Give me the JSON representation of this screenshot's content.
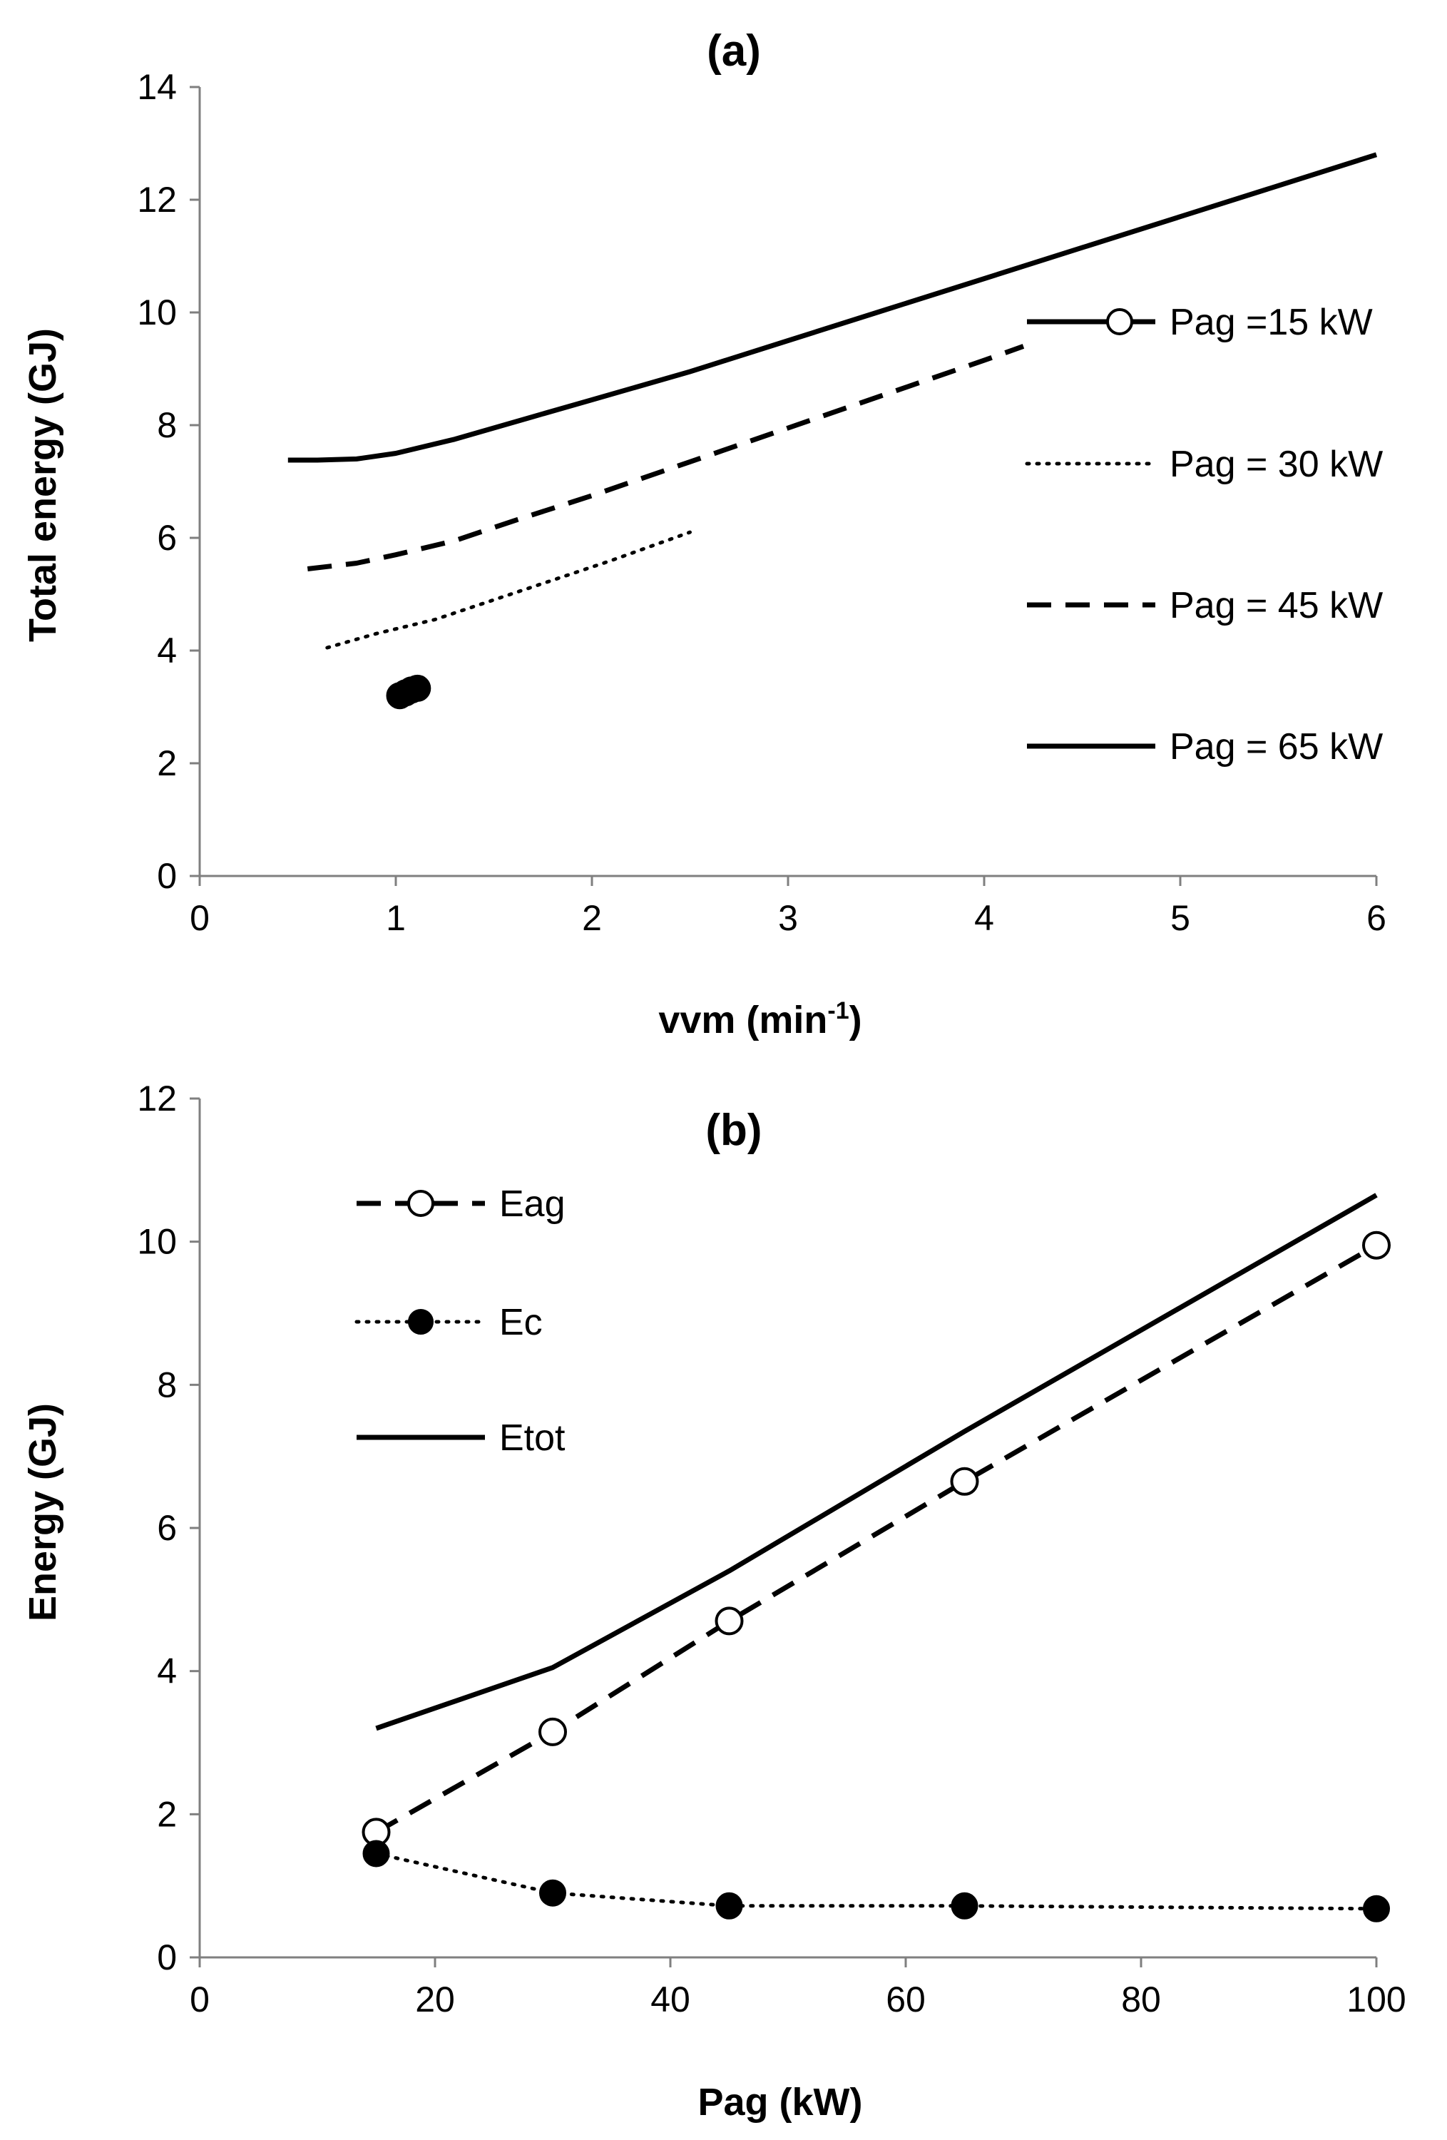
{
  "colors": {
    "line": "#000000",
    "axis": "#7f7f7f",
    "background": "#ffffff"
  },
  "chart_data": [
    {
      "type": "line",
      "title": "(a)",
      "xlabel": "vvm (min",
      "xlabel_superscript": "-1",
      "xlabel_suffix": ")",
      "ylabel": "Total energy (GJ)",
      "xlim": [
        0,
        6
      ],
      "ylim": [
        0,
        14
      ],
      "xticks": [
        0,
        1,
        2,
        3,
        4,
        5,
        6
      ],
      "yticks": [
        0,
        2,
        4,
        6,
        8,
        10,
        12,
        14
      ],
      "grid": false,
      "legend_position": "right",
      "series": [
        {
          "name": "Pag =15 kW",
          "line_style": "solid",
          "marker": "filled-circle",
          "x": [
            1.02,
            1.05,
            1.08,
            1.11
          ],
          "y": [
            3.2,
            3.25,
            3.3,
            3.33
          ]
        },
        {
          "name": "Pag = 30 kW",
          "line_style": "dotted",
          "marker": "none",
          "x": [
            0.65,
            0.9,
            1.2,
            1.5,
            1.8,
            2.1,
            2.5
          ],
          "y": [
            4.05,
            4.3,
            4.55,
            4.9,
            5.25,
            5.6,
            6.1
          ]
        },
        {
          "name": "Pag = 45 kW",
          "line_style": "dashed",
          "marker": "none",
          "x": [
            0.55,
            0.8,
            1.0,
            1.3,
            1.6,
            2.0,
            2.5,
            3.0,
            3.5,
            4.0,
            4.2
          ],
          "y": [
            5.45,
            5.55,
            5.7,
            5.95,
            6.3,
            6.75,
            7.35,
            7.95,
            8.55,
            9.15,
            9.4
          ]
        },
        {
          "name": "Pag = 65 kW",
          "line_style": "solid",
          "marker": "none",
          "x": [
            0.45,
            0.6,
            0.8,
            1.0,
            1.3,
            1.7,
            2.0,
            2.5,
            3.0,
            3.5,
            4.0,
            4.5,
            5.0,
            5.5,
            6.0
          ],
          "y": [
            7.38,
            7.38,
            7.4,
            7.5,
            7.75,
            8.15,
            8.45,
            8.95,
            9.5,
            10.05,
            10.6,
            11.15,
            11.7,
            12.25,
            12.8
          ]
        }
      ]
    },
    {
      "type": "line",
      "title": "(b)",
      "xlabel": "Pag (kW)",
      "ylabel": "Energy (GJ)",
      "xlim": [
        0,
        100
      ],
      "ylim": [
        0,
        12
      ],
      "xticks": [
        0,
        20,
        40,
        60,
        80,
        100
      ],
      "yticks": [
        0,
        2,
        4,
        6,
        8,
        10,
        12
      ],
      "grid": false,
      "legend_position": "top-left",
      "series": [
        {
          "name": "Eag",
          "line_style": "dashed",
          "marker": "open-circle",
          "x": [
            15,
            30,
            45,
            65,
            100
          ],
          "y": [
            1.75,
            3.15,
            4.7,
            6.65,
            9.95
          ]
        },
        {
          "name": "Ec",
          "line_style": "dotted",
          "marker": "filled-circle",
          "x": [
            15,
            30,
            45,
            65,
            100
          ],
          "y": [
            1.45,
            0.9,
            0.72,
            0.72,
            0.68
          ]
        },
        {
          "name": "Etot",
          "line_style": "solid",
          "marker": "none",
          "x": [
            15,
            30,
            45,
            65,
            100
          ],
          "y": [
            3.2,
            4.05,
            5.4,
            7.35,
            10.65
          ]
        }
      ]
    }
  ]
}
